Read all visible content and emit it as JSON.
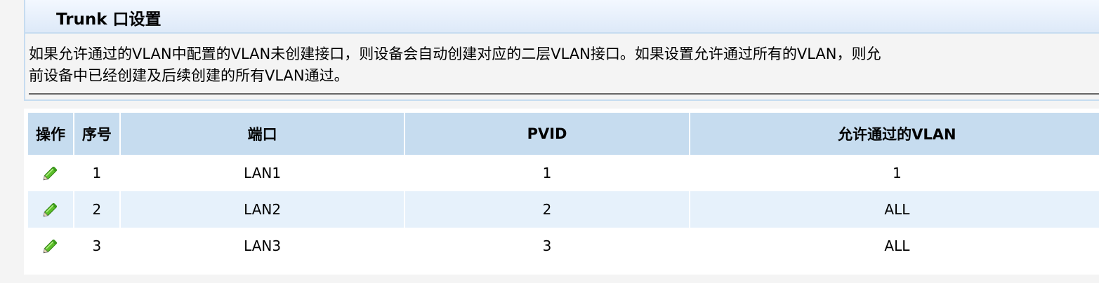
{
  "panel": {
    "title": "Trunk 口设置",
    "description_line1": "如果允许通过的VLAN中配置的VLAN未创建接口，则设备会自动创建对应的二层VLAN接口。如果设置允许通过所有的VLAN，则允",
    "description_line2": "前设备中已经创建及后续创建的所有VLAN通过。"
  },
  "table": {
    "headers": [
      "操作",
      "序号",
      "端口",
      "PVID",
      "允许通过的VLAN"
    ],
    "rows": [
      {
        "index": "1",
        "port": "LAN1",
        "pvid": "1",
        "vlan": "1"
      },
      {
        "index": "2",
        "port": "LAN2",
        "pvid": "2",
        "vlan": "ALL"
      },
      {
        "index": "3",
        "port": "LAN3",
        "pvid": "3",
        "vlan": "ALL"
      }
    ],
    "edit_icon": "pencil-icon",
    "colors": {
      "header_bg": "#c6dcef",
      "alt_row_bg": "#e6f1fb"
    }
  }
}
